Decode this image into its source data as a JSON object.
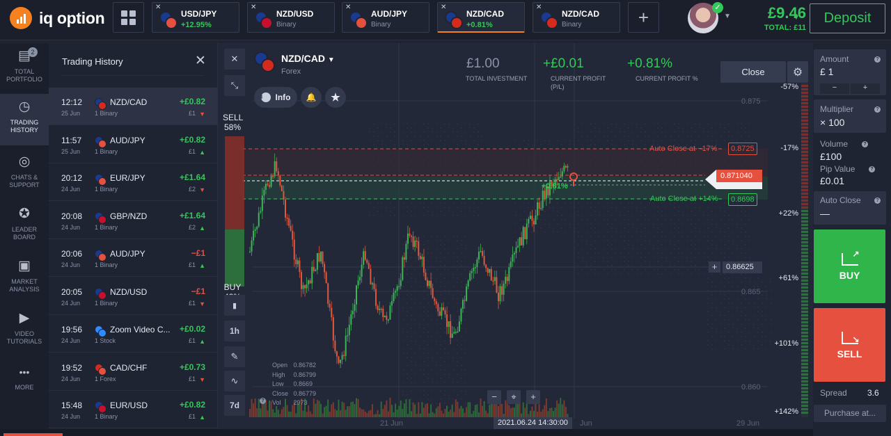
{
  "brand": {
    "name": "iq option"
  },
  "tabs": [
    {
      "pair": "USD/JPY",
      "sub": "+12.95%",
      "sub_style": "green",
      "flags": [
        "#1a3a8f",
        "#e6503e"
      ],
      "active": false
    },
    {
      "pair": "NZD/USD",
      "sub": "Binary",
      "sub_style": "gray",
      "flags": [
        "#1a3a8f",
        "#c8102e"
      ],
      "active": false
    },
    {
      "pair": "AUD/JPY",
      "sub": "Binary",
      "sub_style": "gray",
      "flags": [
        "#1a3a8f",
        "#e6503e"
      ],
      "active": false
    },
    {
      "pair": "NZD/CAD",
      "sub": "+0.81%",
      "sub_style": "green",
      "flags": [
        "#1a3a8f",
        "#d52b1e"
      ],
      "active": true
    },
    {
      "pair": "NZD/CAD",
      "sub": "Binary",
      "sub_style": "gray",
      "flags": [
        "#1a3a8f",
        "#d52b1e"
      ],
      "active": false
    }
  ],
  "account": {
    "balance": "£9.46",
    "total": "TOTAL: £11",
    "deposit_label": "Deposit"
  },
  "nav": [
    {
      "label": "TOTAL PORTFOLIO",
      "icon": "briefcase-icon",
      "badge": "2"
    },
    {
      "label": "TRADING HISTORY",
      "icon": "history-icon",
      "active": true
    },
    {
      "label": "CHATS & SUPPORT",
      "icon": "chat-icon"
    },
    {
      "label": "LEADER BOARD",
      "icon": "trophy-icon"
    },
    {
      "label": "MARKET ANALYSIS",
      "icon": "news-icon"
    },
    {
      "label": "VIDEO TUTORIALS",
      "icon": "play-icon"
    },
    {
      "label": "MORE",
      "icon": "more-icon"
    }
  ],
  "history": {
    "title": "Trading History",
    "rows": [
      {
        "time": "12:12",
        "date": "25 Jun",
        "asset": "NZD/CAD",
        "type": "1 Binary",
        "pl": "+£0.82",
        "inv": "£1",
        "dir": "down",
        "win": true,
        "flags": [
          "#1a3a8f",
          "#d52b1e"
        ],
        "active": true
      },
      {
        "time": "11:57",
        "date": "25 Jun",
        "asset": "AUD/JPY",
        "type": "1 Binary",
        "pl": "+£0.82",
        "inv": "£1",
        "dir": "up",
        "win": true,
        "flags": [
          "#1a3a8f",
          "#e6503e"
        ]
      },
      {
        "time": "20:12",
        "date": "24 Jun",
        "asset": "EUR/JPY",
        "type": "1 Binary",
        "pl": "+£1.64",
        "inv": "£2",
        "dir": "down",
        "win": true,
        "flags": [
          "#1a3a8f",
          "#e6503e"
        ]
      },
      {
        "time": "20:08",
        "date": "24 Jun",
        "asset": "GBP/NZD",
        "type": "1 Binary",
        "pl": "+£1.64",
        "inv": "£2",
        "dir": "up",
        "win": true,
        "flags": [
          "#1a3a8f",
          "#c8102e"
        ]
      },
      {
        "time": "20:06",
        "date": "24 Jun",
        "asset": "AUD/JPY",
        "type": "1 Binary",
        "pl": "−£1",
        "inv": "£1",
        "dir": "up",
        "win": false,
        "flags": [
          "#1a3a8f",
          "#e6503e"
        ]
      },
      {
        "time": "20:05",
        "date": "24 Jun",
        "asset": "NZD/USD",
        "type": "1 Binary",
        "pl": "−£1",
        "inv": "£1",
        "dir": "down",
        "win": false,
        "flags": [
          "#1a3a8f",
          "#c8102e"
        ]
      },
      {
        "time": "19:56",
        "date": "24 Jun",
        "asset": "Zoom Video C...",
        "type": "1 Stock",
        "pl": "+£0.02",
        "inv": "£1",
        "dir": "up",
        "win": true,
        "flags": [
          "#2d8cff",
          "#2d8cff"
        ]
      },
      {
        "time": "19:52",
        "date": "24 Jun",
        "asset": "CAD/CHF",
        "type": "1 Forex",
        "pl": "+£0.73",
        "inv": "£1",
        "dir": "down",
        "win": true,
        "flags": [
          "#d52b1e",
          "#e6503e"
        ]
      },
      {
        "time": "15:48",
        "date": "24 Jun",
        "asset": "EUR/USD",
        "type": "1 Binary",
        "pl": "+£0.82",
        "inv": "£1",
        "dir": "up",
        "win": true,
        "flags": [
          "#1a3a8f",
          "#c8102e"
        ]
      }
    ]
  },
  "chart": {
    "asset": "NZD/CAD",
    "category": "Forex",
    "info_label": "Info",
    "total_investment": {
      "value": "£1.00",
      "label": "TOTAL INVESTMENT"
    },
    "current_profit": {
      "value": "+£0.01",
      "label": "CURRENT PROFIT (P/L)"
    },
    "current_profit_pct": {
      "value": "+0.81%",
      "label": "CURRENT PROFIT %"
    },
    "close_label": "Close",
    "sell_label": "SELL",
    "sell_pct": "58%",
    "buy_label": "BUY",
    "buy_pct": "42%",
    "timeframe": "1h",
    "period": "7d",
    "auto_close_loss": {
      "label": "Auto Close at −17%",
      "price": "0.8725"
    },
    "auto_close_win": {
      "label": "Auto Close at +14%",
      "price": "0.8698"
    },
    "position_pct": "+0.81%",
    "current_price": "0.871040",
    "crosshair_price": "0.86625",
    "crosshair_time": "2021.06.24 14:30:00",
    "price_ticks": [
      "0.875",
      "0.865",
      "0.860"
    ],
    "pct_ticks": [
      "-57%",
      "-17%",
      "+22%",
      "+61%",
      "+101%",
      "+142%"
    ],
    "date_ticks": [
      "21 Jun",
      "Jun",
      "29 Jun"
    ],
    "ohlc": {
      "Open": "0.86782",
      "High": "0.86799",
      "Low": "0.8669",
      "Close": "0.86779",
      "Vol": "2973"
    },
    "zoom_controls": [
      "−",
      "⌖",
      "+"
    ]
  },
  "trade": {
    "amount_label": "Amount",
    "amount_value": "£ 1",
    "multiplier_label": "Multiplier",
    "multiplier_value": "× 100",
    "volume_label": "Volume",
    "volume_value": "£100",
    "pip_label": "Pip Value",
    "pip_value": "£0.01",
    "autoclose_label": "Auto Close",
    "autoclose_value": "—",
    "buy_label": "BUY",
    "sell_label": "SELL",
    "spread_label": "Spread",
    "spread_value": "3.6",
    "purchase_label": "Purchase at..."
  },
  "colors": {
    "green": "#34c759",
    "red": "#e6503e",
    "orange": "#f5821f",
    "panel": "#2d3345",
    "bg": "#1f2433"
  }
}
